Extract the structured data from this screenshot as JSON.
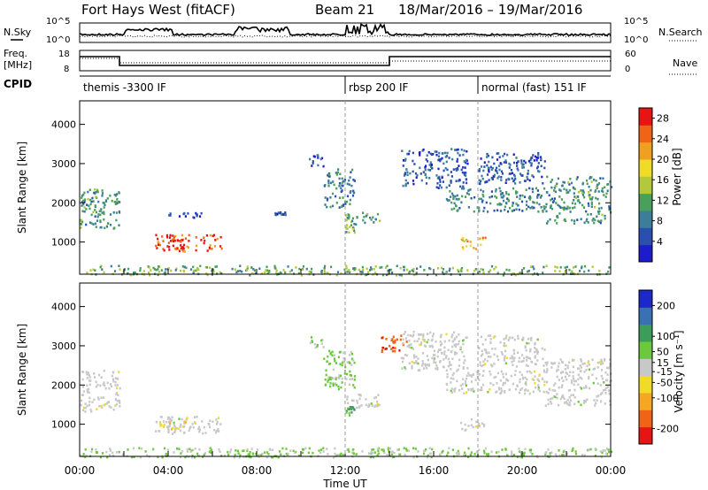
{
  "header": {
    "title": "Fort Hays West (fitACF)",
    "beam": "Beam 21",
    "date_range": "18/Mar/2016 – 19/Mar/2016"
  },
  "noise_panel": {
    "left_label": "N.Sky",
    "right_label": "N.Search",
    "tick_top": "10^5",
    "tick_bottom": "10^0"
  },
  "freq_panel": {
    "left_label": "Freq.",
    "left_unit": "[MHz]",
    "right_label": "Nave",
    "left_ticks": [
      "18",
      "8"
    ],
    "right_ticks": [
      "60",
      "0"
    ]
  },
  "cpid_panel": {
    "label": "CPID",
    "segments": [
      {
        "label": "themis -3300 IF",
        "start_hour": 0
      },
      {
        "label": "rbsp 200 IF",
        "start_hour": 12
      },
      {
        "label": "normal (fast) 151 IF",
        "start_hour": 18
      }
    ]
  },
  "colors": {
    "power_scale": [
      "#1c1ccc",
      "#2a4fb0",
      "#3c7d9c",
      "#4aa05a",
      "#b4c83c",
      "#f0dc28",
      "#f0a020",
      "#f06418",
      "#e61414"
    ],
    "velocity_scale": [
      "#e61414",
      "#f06418",
      "#f5a623",
      "#f0dc28",
      "#c8c8c8",
      "#6cc83c",
      "#3c9c5a",
      "#3a70b4",
      "#1c28c8"
    ]
  },
  "chart_data": [
    {
      "type": "heatmap",
      "name": "power",
      "xlabel": "Time UT",
      "ylabel": "Slant Range [km]",
      "xlim": [
        0,
        24
      ],
      "ylim": [
        180,
        4600
      ],
      "x_ticks": [
        "00:00",
        "04:00",
        "08:00",
        "12:00",
        "16:00",
        "20:00",
        "00:00"
      ],
      "y_ticks": [
        1000,
        2000,
        3000,
        4000
      ],
      "colorbar": {
        "label": "Power [dB]",
        "ticks": [
          4,
          8,
          12,
          16,
          20,
          24,
          28
        ],
        "range": [
          0,
          30
        ]
      },
      "regions": [
        {
          "t0": 0.0,
          "t1": 1.8,
          "r0": 1350,
          "r1": 2400,
          "v": 10
        },
        {
          "t0": 3.4,
          "t1": 6.4,
          "r0": 780,
          "r1": 1220,
          "v": 25
        },
        {
          "t0": 3.9,
          "t1": 4.8,
          "r0": 850,
          "r1": 1150,
          "v": 29
        },
        {
          "t0": 4.0,
          "t1": 5.5,
          "r0": 1600,
          "r1": 1780,
          "v": 5
        },
        {
          "t0": 8.8,
          "t1": 9.3,
          "r0": 1700,
          "r1": 1800,
          "v": 6
        },
        {
          "t0": 10.3,
          "t1": 11.0,
          "r0": 2950,
          "r1": 3250,
          "v": 6
        },
        {
          "t0": 11.0,
          "t1": 12.4,
          "r0": 1900,
          "r1": 2900,
          "v": 8
        },
        {
          "t0": 12.0,
          "t1": 13.6,
          "r0": 1450,
          "r1": 1800,
          "v": 11
        },
        {
          "t0": 12.0,
          "t1": 12.4,
          "r0": 1250,
          "r1": 1500,
          "v": 13
        },
        {
          "t0": 14.5,
          "t1": 17.5,
          "r0": 2400,
          "r1": 3400,
          "v": 6
        },
        {
          "t0": 16.5,
          "t1": 21.0,
          "r0": 1800,
          "r1": 2400,
          "v": 9
        },
        {
          "t0": 17.2,
          "t1": 18.3,
          "r0": 850,
          "r1": 1150,
          "v": 20
        },
        {
          "t0": 18.0,
          "t1": 21.0,
          "r0": 2500,
          "r1": 3300,
          "v": 6
        },
        {
          "t0": 21.0,
          "t1": 24.0,
          "r0": 1500,
          "r1": 2700,
          "v": 10
        },
        {
          "t0": 0.0,
          "t1": 24.0,
          "r0": 180,
          "r1": 420,
          "v": 12
        }
      ]
    },
    {
      "type": "heatmap",
      "name": "velocity",
      "xlabel": "Time UT",
      "ylabel": "Slant Range [km]",
      "xlim": [
        0,
        24
      ],
      "ylim": [
        180,
        4600
      ],
      "x_ticks": [
        "00:00",
        "04:00",
        "08:00",
        "12:00",
        "16:00",
        "20:00",
        "00:00"
      ],
      "y_ticks": [
        1000,
        2000,
        3000,
        4000
      ],
      "colorbar": {
        "label": "Velocity [m s⁻¹]",
        "ticks": [
          200,
          100,
          50,
          15,
          -15,
          -50,
          -100,
          -200
        ],
        "range": [
          -250,
          250
        ]
      },
      "regions": [
        {
          "t0": 0.0,
          "t1": 1.8,
          "r0": 1350,
          "r1": 2400,
          "v": 0
        },
        {
          "t0": 3.4,
          "t1": 6.4,
          "r0": 780,
          "r1": 1220,
          "v": 0
        },
        {
          "t0": 3.6,
          "t1": 4.8,
          "r0": 850,
          "r1": 1100,
          "v": -60
        },
        {
          "t0": 10.3,
          "t1": 11.0,
          "r0": 2950,
          "r1": 3250,
          "v": 20
        },
        {
          "t0": 11.0,
          "t1": 12.4,
          "r0": 1900,
          "r1": 2900,
          "v": 40
        },
        {
          "t0": 12.0,
          "t1": 13.6,
          "r0": 1450,
          "r1": 1800,
          "v": 0
        },
        {
          "t0": 12.0,
          "t1": 12.4,
          "r0": 1250,
          "r1": 1500,
          "v": 90
        },
        {
          "t0": 13.6,
          "t1": 14.8,
          "r0": 2850,
          "r1": 3300,
          "v": -180
        },
        {
          "t0": 14.5,
          "t1": 17.5,
          "r0": 2400,
          "r1": 3400,
          "v": 0
        },
        {
          "t0": 16.5,
          "t1": 21.0,
          "r0": 1800,
          "r1": 2400,
          "v": 0
        },
        {
          "t0": 17.2,
          "t1": 18.3,
          "r0": 850,
          "r1": 1150,
          "v": 0
        },
        {
          "t0": 18.0,
          "t1": 21.0,
          "r0": 2500,
          "r1": 3300,
          "v": 0
        },
        {
          "t0": 21.0,
          "t1": 24.0,
          "r0": 1500,
          "r1": 2700,
          "v": 0
        },
        {
          "t0": 0.0,
          "t1": 24.0,
          "r0": 180,
          "r1": 420,
          "v": 30
        }
      ]
    }
  ]
}
